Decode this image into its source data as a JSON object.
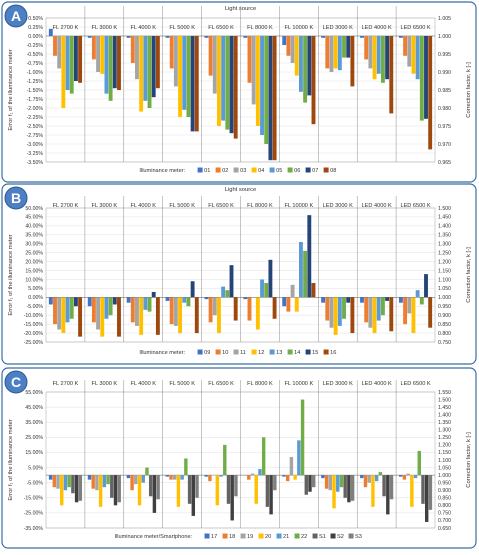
{
  "chart_data": [
    {
      "type": "bar",
      "panel_label": "A",
      "title": "Light source",
      "categories": [
        "FL 2700 K",
        "FL 3000 K",
        "FL 4000 K",
        "FL 5000 K",
        "FL 6500 K",
        "FL 8000 K",
        "FL 10000 K",
        "LED 3000 K",
        "LED 4000 K",
        "LED 6500 K"
      ],
      "ylabel": "Error f₁ of the illuminance meter",
      "y2label": "Correction factor, k [-]",
      "ylim": [
        -3.5,
        0.5
      ],
      "yticks": [
        "0.50%",
        "0.25%",
        "0.00%",
        "-0.25%",
        "-0.50%",
        "-0.75%",
        "-1.00%",
        "-1.25%",
        "-1.50%",
        "-1.75%",
        "-2.00%",
        "-2.25%",
        "-2.50%",
        "-2.75%",
        "-3.00%",
        "-3.25%",
        "-3.50%"
      ],
      "y2ticks": [
        "1.005",
        "1.000",
        "0.995",
        "0.990",
        "0.985",
        "0.980",
        "0.975",
        "0.970",
        "0.965"
      ],
      "legend_title": "Illuminance meter:",
      "grid": true,
      "series": [
        {
          "name": "01",
          "color": "#4472c4",
          "values": [
            0.2,
            -0.05,
            -0.05,
            -0.05,
            -0.05,
            -0.05,
            -0.25,
            -0.05,
            -0.05,
            -0.05
          ]
        },
        {
          "name": "02",
          "color": "#ed7d31",
          "values": [
            -0.55,
            -0.65,
            -0.75,
            -0.9,
            -1.1,
            -1.3,
            -0.55,
            -0.9,
            -0.65,
            -0.55
          ]
        },
        {
          "name": "03",
          "color": "#a5a5a5",
          "values": [
            -0.9,
            -1.0,
            -1.2,
            -1.4,
            -1.6,
            -1.9,
            -0.75,
            -1.0,
            -0.9,
            -0.85
          ]
        },
        {
          "name": "04",
          "color": "#ffc000",
          "values": [
            -2.0,
            -1.05,
            -2.1,
            -2.25,
            -2.5,
            -2.5,
            -1.1,
            -0.9,
            -1.2,
            -1.05
          ]
        },
        {
          "name": "05",
          "color": "#5b9bd5",
          "values": [
            -1.5,
            -1.6,
            -1.8,
            -2.05,
            -2.35,
            -2.75,
            -1.55,
            -0.95,
            -1.05,
            -1.2
          ]
        },
        {
          "name": "06",
          "color": "#70ad47",
          "values": [
            -1.6,
            -1.8,
            -2.0,
            -2.25,
            -2.6,
            -3.0,
            -1.85,
            -0.6,
            -1.3,
            -2.35
          ]
        },
        {
          "name": "07",
          "color": "#264478",
          "values": [
            -1.25,
            -1.45,
            -1.7,
            -2.65,
            -2.7,
            -3.45,
            -1.65,
            -0.6,
            -1.2,
            -2.3
          ]
        },
        {
          "name": "08",
          "color": "#9e480e",
          "values": [
            -1.3,
            -1.5,
            -1.45,
            -2.65,
            -2.85,
            -3.45,
            -2.45,
            -1.4,
            -2.15,
            -3.15
          ]
        }
      ]
    },
    {
      "type": "bar",
      "panel_label": "B",
      "title": "Light source",
      "categories": [
        "FL 2700 K",
        "FL 3000 K",
        "FL 4000 K",
        "FL 5000 K",
        "FL 6500 K",
        "FL 8000 K",
        "FL 10000 K",
        "LED 3000 K",
        "LED 4000 K",
        "LED 6500 K"
      ],
      "ylabel": "Error f₁ of the illuminance meter",
      "y2label": "Correction factor, k [-]",
      "ylim": [
        -25,
        50
      ],
      "yticks": [
        "50.00%",
        "45.00%",
        "40.00%",
        "35.00%",
        "30.00%",
        "25.00%",
        "20.00%",
        "15.00%",
        "10.00%",
        "5.00%",
        "0.00%",
        "-5.00%",
        "-10.00%",
        "-15.00%",
        "-20.00%",
        "-25.00%"
      ],
      "y2ticks": [
        "1.500",
        "1.450",
        "1.400",
        "1.350",
        "1.300",
        "1.250",
        "1.200",
        "1.150",
        "1.100",
        "1.050",
        "1.000",
        "0.950",
        "0.900",
        "0.850",
        "0.800",
        "0.750"
      ],
      "legend_title": "Illuminance meter:",
      "grid": true,
      "series": [
        {
          "name": "09",
          "color": "#4472c4",
          "values": [
            -4,
            -5,
            -3,
            -2,
            -1,
            -1,
            -5,
            -3,
            -3,
            -3
          ]
        },
        {
          "name": "10",
          "color": "#ed7d31",
          "values": [
            -15,
            -14,
            -14,
            -15,
            -14,
            -13,
            -8,
            -13,
            -14,
            -15
          ]
        },
        {
          "name": "11",
          "color": "#a5a5a5",
          "values": [
            -18,
            -18,
            -16,
            -16,
            -10,
            0,
            7,
            -17,
            -17,
            -9
          ]
        },
        {
          "name": "12",
          "color": "#ffc000",
          "values": [
            -20,
            -22,
            -21,
            -20,
            -20,
            -18,
            -8,
            -21,
            -20,
            -20
          ]
        },
        {
          "name": "13",
          "color": "#5b9bd5",
          "values": [
            -14,
            -12,
            -7,
            -3,
            6,
            10,
            31,
            -16,
            -13,
            4
          ]
        },
        {
          "name": "14",
          "color": "#70ad47",
          "values": [
            -12,
            -10,
            -8,
            -5,
            4,
            8,
            26,
            -12,
            -10,
            -4
          ]
        },
        {
          "name": "15",
          "color": "#264478",
          "values": [
            -5,
            -4,
            3,
            9,
            18,
            21,
            46,
            -3,
            -2,
            13
          ]
        },
        {
          "name": "16",
          "color": "#9e480e",
          "values": [
            -22,
            -22,
            -21,
            -20,
            -13,
            -12,
            8,
            -20,
            -19,
            -17
          ]
        }
      ]
    },
    {
      "type": "bar",
      "panel_label": "C",
      "title": "",
      "categories": [
        "FL 2700 K",
        "FL 3000 K",
        "FL 4000 K",
        "FL 5000 K",
        "FL 6500 K",
        "FL 8000 K",
        "FL 10000 K",
        "LED 3000 K",
        "LED 4000 K",
        "LED 6500 K"
      ],
      "ylabel": "Error f₁ of the illuminance meter",
      "y2label": "Correction factor, k [-]",
      "ylim": [
        -35,
        55
      ],
      "yticks": [
        "55.00%",
        "45.00%",
        "35.00%",
        "25.00%",
        "15.00%",
        "5.00%",
        "-5.00%",
        "-15.00%",
        "-25.00%",
        "-35.00%"
      ],
      "y2ticks": [
        "1.550",
        "1.500",
        "1.450",
        "1.400",
        "1.350",
        "1.300",
        "1.250",
        "1.200",
        "1.150",
        "1.100",
        "1.050",
        "1.000",
        "0.950",
        "0.900",
        "0.850",
        "0.800",
        "0.750",
        "0.700",
        "0.650"
      ],
      "legend_title": "Illuminance meter/Smartphone:",
      "grid": true,
      "series": [
        {
          "name": "17",
          "color": "#4472c4",
          "values": [
            -3,
            -3,
            -2,
            -1,
            -1,
            0,
            -1,
            -2,
            -2,
            -1
          ]
        },
        {
          "name": "18",
          "color": "#ed7d31",
          "values": [
            -8,
            -9,
            -10,
            -3,
            -4,
            -3,
            -4,
            -9,
            -8,
            -3
          ]
        },
        {
          "name": "19",
          "color": "#a5a5a5",
          "values": [
            -9,
            -10,
            -6,
            -3,
            0,
            1,
            12,
            -10,
            -5,
            1
          ]
        },
        {
          "name": "20",
          "color": "#ffc000",
          "values": [
            -20,
            -21,
            -20,
            -21,
            -20,
            -19,
            -3,
            -22,
            -21,
            -21
          ]
        },
        {
          "name": "21",
          "color": "#5b9bd5",
          "values": [
            -10,
            -8,
            -5,
            -3,
            -1,
            4,
            23,
            -11,
            -4,
            -2
          ]
        },
        {
          "name": "22",
          "color": "#70ad47",
          "values": [
            -8,
            -6,
            5,
            11,
            20,
            25,
            50,
            -8,
            2,
            16
          ]
        },
        {
          "name": "S1",
          "color": "#636363",
          "values": [
            -12,
            -15,
            -14,
            -19,
            -19,
            -21,
            -13,
            -15,
            -14,
            -19
          ]
        },
        {
          "name": "S2",
          "color": "#404040",
          "values": [
            -18,
            -20,
            -25,
            -27,
            -30,
            -26,
            -11,
            -18,
            -26,
            -31
          ]
        },
        {
          "name": "S3",
          "color": "#7f7f7f",
          "values": [
            -17,
            -18,
            -16,
            -15,
            -14,
            -10,
            -8,
            -17,
            -16,
            -23
          ]
        }
      ]
    }
  ]
}
